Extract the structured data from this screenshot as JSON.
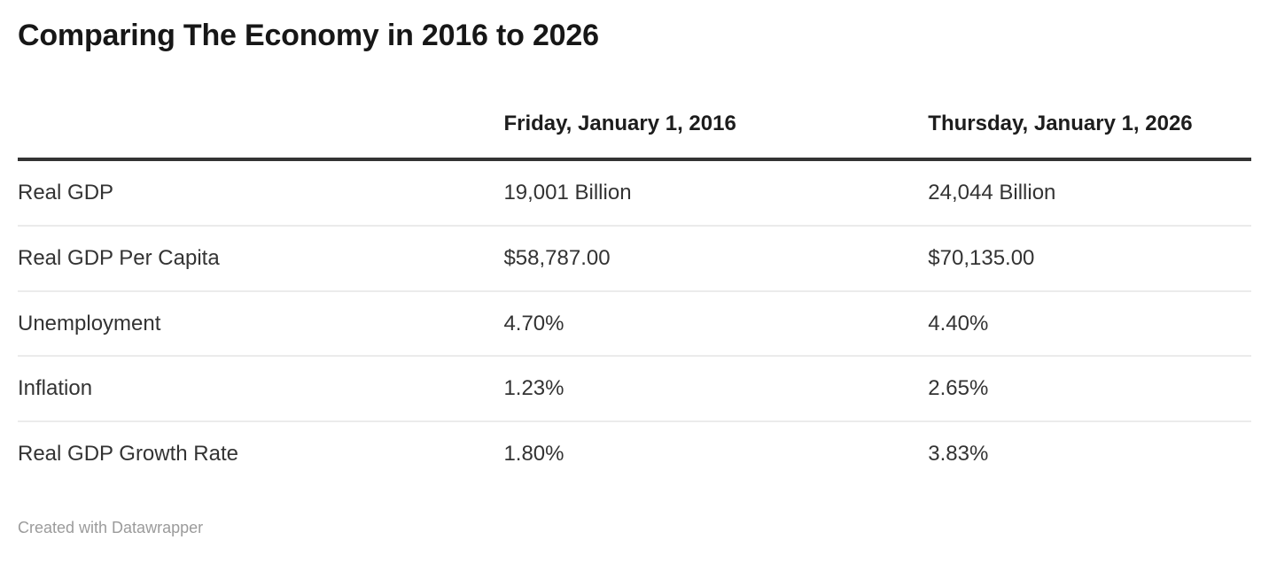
{
  "title": "Comparing The Economy in 2016 to 2026",
  "chart_data": {
    "type": "table",
    "title": "Comparing The Economy in 2016 to 2026",
    "columns": [
      "",
      "Friday, January 1, 2016",
      "Thursday, January 1, 2026"
    ],
    "rows": [
      [
        "Real GDP",
        "19,001 Billion",
        "24,044 Billion"
      ],
      [
        "Real GDP Per Capita",
        "$58,787.00",
        "$70,135.00"
      ],
      [
        "Unemployment",
        "4.70%",
        "4.40%"
      ],
      [
        "Inflation",
        "1.23%",
        "2.65%"
      ],
      [
        "Real GDP Growth Rate",
        "1.80%",
        "3.83%"
      ]
    ],
    "numeric_values": {
      "real_gdp_billion": [
        19001,
        24044
      ],
      "real_gdp_per_capita_usd": [
        58787.0,
        70135.0
      ],
      "unemployment_pct": [
        4.7,
        4.4
      ],
      "inflation_pct": [
        1.23,
        2.65
      ],
      "real_gdp_growth_rate_pct": [
        1.8,
        3.83
      ]
    },
    "layout_hints": {
      "header_rule": "thick dark line under header",
      "row_separators": "thin light gray lines",
      "alignment": "all columns left-aligned"
    }
  },
  "footer": {
    "attribution": "Created with Datawrapper"
  },
  "colors": {
    "background": "#ffffff",
    "title_text": "#171717",
    "header_text": "#1d1d1d",
    "body_text": "#333333",
    "header_rule": "#333333",
    "row_separator": "#ebebeb",
    "attribution_text": "#9b9b9b"
  }
}
